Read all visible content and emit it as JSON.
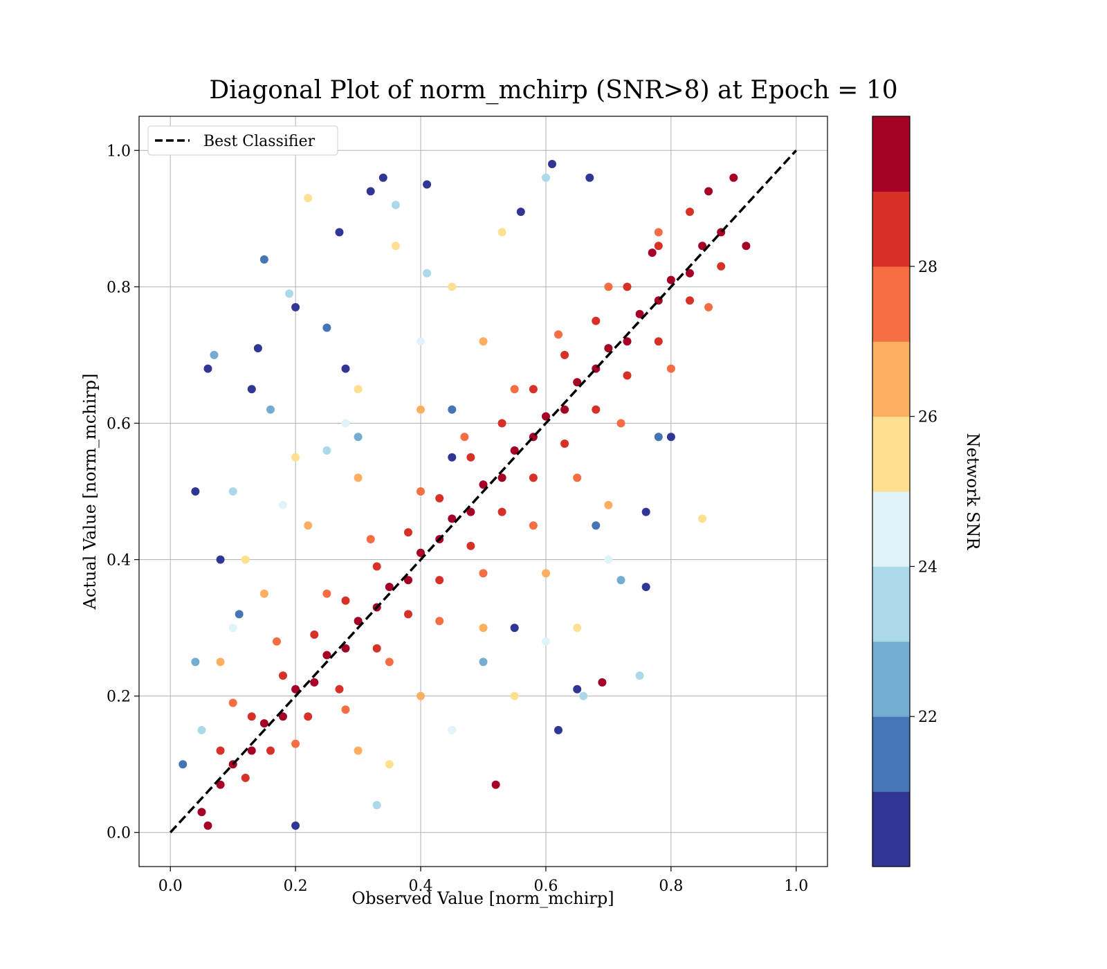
{
  "chart_data": {
    "type": "scatter",
    "title": "Diagonal Plot of norm_mchirp (SNR>8) at Epoch = 10",
    "xlabel": "Observed Value [norm_mchirp]",
    "ylabel": "Actual Value [norm_mchirp]",
    "xlim": [
      -0.05,
      1.05
    ],
    "ylim": [
      -0.05,
      1.05
    ],
    "xticks": [
      "0.0",
      "0.2",
      "0.4",
      "0.6",
      "0.8",
      "1.0"
    ],
    "yticks": [
      "0.0",
      "0.2",
      "0.4",
      "0.6",
      "0.8",
      "1.0"
    ],
    "grid": true,
    "legend": {
      "placement": "top-left",
      "entries": [
        {
          "label": "Best Classifier",
          "style": "dashed",
          "color": "#000000"
        }
      ]
    },
    "reference_line": {
      "name": "Best Classifier",
      "x": [
        0.0,
        1.0
      ],
      "y": [
        0.0,
        1.0
      ]
    },
    "colorbar": {
      "label": "Network SNR",
      "range": [
        20.0,
        30.0
      ],
      "ticks": [
        "22",
        "24",
        "26",
        "28"
      ],
      "colors": [
        "#313695",
        "#4575b4",
        "#74add1",
        "#abd9e9",
        "#e0f3f8",
        "#fee090",
        "#fdae61",
        "#f46d43",
        "#d73027",
        "#a50026"
      ]
    },
    "series": [
      {
        "color_by": "Network SNR",
        "points": [
          [
            0.05,
            0.03,
            29
          ],
          [
            0.08,
            0.07,
            29
          ],
          [
            0.1,
            0.1,
            29
          ],
          [
            0.13,
            0.12,
            29
          ],
          [
            0.15,
            0.16,
            29
          ],
          [
            0.18,
            0.17,
            29
          ],
          [
            0.2,
            0.21,
            29
          ],
          [
            0.23,
            0.22,
            29
          ],
          [
            0.25,
            0.26,
            29
          ],
          [
            0.28,
            0.27,
            29
          ],
          [
            0.3,
            0.31,
            29
          ],
          [
            0.33,
            0.33,
            29
          ],
          [
            0.35,
            0.36,
            29
          ],
          [
            0.38,
            0.37,
            29
          ],
          [
            0.4,
            0.41,
            29
          ],
          [
            0.43,
            0.43,
            29
          ],
          [
            0.45,
            0.46,
            29
          ],
          [
            0.48,
            0.47,
            29
          ],
          [
            0.5,
            0.51,
            29
          ],
          [
            0.53,
            0.52,
            29
          ],
          [
            0.55,
            0.56,
            29
          ],
          [
            0.58,
            0.58,
            29
          ],
          [
            0.6,
            0.61,
            29
          ],
          [
            0.63,
            0.62,
            29
          ],
          [
            0.65,
            0.66,
            29
          ],
          [
            0.68,
            0.68,
            29
          ],
          [
            0.7,
            0.71,
            29
          ],
          [
            0.73,
            0.72,
            29
          ],
          [
            0.75,
            0.76,
            29
          ],
          [
            0.78,
            0.78,
            29
          ],
          [
            0.8,
            0.81,
            29
          ],
          [
            0.83,
            0.82,
            29
          ],
          [
            0.85,
            0.86,
            29
          ],
          [
            0.88,
            0.88,
            29
          ],
          [
            0.86,
            0.94,
            29
          ],
          [
            0.9,
            0.96,
            29
          ],
          [
            0.12,
            0.08,
            28
          ],
          [
            0.16,
            0.12,
            28
          ],
          [
            0.22,
            0.17,
            28
          ],
          [
            0.27,
            0.21,
            28
          ],
          [
            0.33,
            0.27,
            28
          ],
          [
            0.38,
            0.32,
            28
          ],
          [
            0.43,
            0.37,
            28
          ],
          [
            0.48,
            0.42,
            28
          ],
          [
            0.53,
            0.47,
            28
          ],
          [
            0.58,
            0.52,
            28
          ],
          [
            0.63,
            0.57,
            28
          ],
          [
            0.68,
            0.62,
            28
          ],
          [
            0.73,
            0.67,
            28
          ],
          [
            0.78,
            0.72,
            28
          ],
          [
            0.83,
            0.78,
            28
          ],
          [
            0.88,
            0.83,
            28
          ],
          [
            0.08,
            0.12,
            28
          ],
          [
            0.13,
            0.17,
            28
          ],
          [
            0.18,
            0.23,
            28
          ],
          [
            0.23,
            0.29,
            28
          ],
          [
            0.28,
            0.34,
            28
          ],
          [
            0.33,
            0.39,
            28
          ],
          [
            0.38,
            0.44,
            28
          ],
          [
            0.43,
            0.49,
            28
          ],
          [
            0.48,
            0.55,
            28
          ],
          [
            0.53,
            0.6,
            28
          ],
          [
            0.58,
            0.65,
            28
          ],
          [
            0.63,
            0.7,
            28
          ],
          [
            0.68,
            0.75,
            28
          ],
          [
            0.73,
            0.8,
            28
          ],
          [
            0.78,
            0.86,
            28
          ],
          [
            0.83,
            0.91,
            28
          ],
          [
            0.2,
            0.13,
            27
          ],
          [
            0.28,
            0.18,
            27
          ],
          [
            0.35,
            0.25,
            27
          ],
          [
            0.43,
            0.31,
            27
          ],
          [
            0.5,
            0.38,
            27
          ],
          [
            0.58,
            0.45,
            27
          ],
          [
            0.65,
            0.52,
            27
          ],
          [
            0.72,
            0.6,
            27
          ],
          [
            0.8,
            0.68,
            27
          ],
          [
            0.86,
            0.77,
            27
          ],
          [
            0.1,
            0.19,
            27
          ],
          [
            0.17,
            0.28,
            27
          ],
          [
            0.25,
            0.35,
            27
          ],
          [
            0.32,
            0.43,
            27
          ],
          [
            0.4,
            0.5,
            27
          ],
          [
            0.47,
            0.58,
            27
          ],
          [
            0.55,
            0.65,
            27
          ],
          [
            0.62,
            0.73,
            27
          ],
          [
            0.7,
            0.8,
            27
          ],
          [
            0.78,
            0.88,
            27
          ],
          [
            0.3,
            0.12,
            26
          ],
          [
            0.4,
            0.2,
            26
          ],
          [
            0.5,
            0.3,
            26
          ],
          [
            0.6,
            0.38,
            26
          ],
          [
            0.7,
            0.48,
            26
          ],
          [
            0.78,
            0.58,
            26
          ],
          [
            0.08,
            0.25,
            26
          ],
          [
            0.15,
            0.35,
            26
          ],
          [
            0.22,
            0.45,
            26
          ],
          [
            0.3,
            0.52,
            26
          ],
          [
            0.4,
            0.62,
            26
          ],
          [
            0.5,
            0.72,
            26
          ],
          [
            0.85,
            0.46,
            25
          ],
          [
            0.22,
            0.93,
            25
          ],
          [
            0.36,
            0.86,
            25
          ],
          [
            0.53,
            0.88,
            25
          ],
          [
            0.35,
            0.1,
            25
          ],
          [
            0.55,
            0.2,
            25
          ],
          [
            0.65,
            0.3,
            25
          ],
          [
            0.12,
            0.4,
            25
          ],
          [
            0.2,
            0.55,
            25
          ],
          [
            0.3,
            0.65,
            25
          ],
          [
            0.45,
            0.8,
            25
          ],
          [
            0.6,
            0.28,
            24
          ],
          [
            0.7,
            0.4,
            24
          ],
          [
            0.45,
            0.15,
            24
          ],
          [
            0.1,
            0.3,
            24
          ],
          [
            0.18,
            0.48,
            24
          ],
          [
            0.28,
            0.6,
            24
          ],
          [
            0.4,
            0.72,
            24
          ],
          [
            0.6,
            0.96,
            23
          ],
          [
            0.36,
            0.92,
            23
          ],
          [
            0.19,
            0.79,
            23
          ],
          [
            0.41,
            0.82,
            23
          ],
          [
            0.66,
            0.2,
            23
          ],
          [
            0.75,
            0.23,
            23
          ],
          [
            0.33,
            0.04,
            23
          ],
          [
            0.05,
            0.15,
            23
          ],
          [
            0.1,
            0.5,
            23
          ],
          [
            0.25,
            0.56,
            23
          ],
          [
            0.07,
            0.7,
            22
          ],
          [
            0.16,
            0.62,
            22
          ],
          [
            0.3,
            0.58,
            22
          ],
          [
            0.5,
            0.25,
            22
          ],
          [
            0.72,
            0.37,
            22
          ],
          [
            0.04,
            0.25,
            22
          ],
          [
            0.15,
            0.84,
            21
          ],
          [
            0.25,
            0.74,
            21
          ],
          [
            0.45,
            0.62,
            21
          ],
          [
            0.68,
            0.45,
            21
          ],
          [
            0.78,
            0.58,
            21
          ],
          [
            0.02,
            0.1,
            21
          ],
          [
            0.11,
            0.32,
            21
          ],
          [
            0.34,
            0.96,
            20
          ],
          [
            0.41,
            0.95,
            20
          ],
          [
            0.56,
            0.91,
            20
          ],
          [
            0.61,
            0.98,
            20
          ],
          [
            0.67,
            0.96,
            20
          ],
          [
            0.27,
            0.88,
            20
          ],
          [
            0.32,
            0.94,
            20
          ],
          [
            0.2,
            0.77,
            20
          ],
          [
            0.14,
            0.71,
            20
          ],
          [
            0.06,
            0.68,
            20
          ],
          [
            0.76,
            0.47,
            20
          ],
          [
            0.8,
            0.58,
            20
          ],
          [
            0.76,
            0.36,
            20
          ],
          [
            0.65,
            0.21,
            20
          ],
          [
            0.2,
            0.01,
            20
          ],
          [
            0.08,
            0.4,
            20
          ],
          [
            0.04,
            0.5,
            20
          ],
          [
            0.13,
            0.65,
            20
          ],
          [
            0.28,
            0.68,
            20
          ],
          [
            0.45,
            0.55,
            20
          ],
          [
            0.55,
            0.3,
            20
          ],
          [
            0.62,
            0.15,
            20
          ],
          [
            0.52,
            0.07,
            29
          ],
          [
            0.69,
            0.22,
            29
          ],
          [
            0.06,
            0.01,
            29
          ],
          [
            0.77,
            0.85,
            29
          ],
          [
            0.92,
            0.86,
            29
          ]
        ]
      }
    ]
  }
}
